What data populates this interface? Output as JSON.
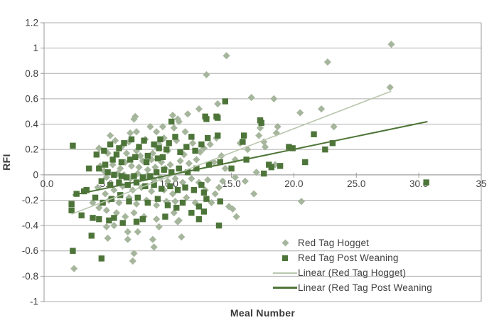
{
  "chart_data": {
    "type": "scatter",
    "title": "",
    "xlabel": "Meal Number",
    "ylabel": "RFI",
    "xlim": [
      0,
      35
    ],
    "ylim": [
      -1,
      1.2
    ],
    "grid": "horizontal",
    "legend_position": "inside-bottom-right",
    "x_ticks": {
      "values": [
        0,
        5,
        10,
        15,
        20,
        25,
        30,
        35
      ],
      "labels": [
        "0.0",
        "5.0",
        "10.0",
        "15.0",
        "20.0",
        "25.0",
        "30.0",
        "35"
      ]
    },
    "y_ticks": {
      "values": [
        1.2,
        1,
        0.8,
        0.6,
        0.4,
        0.2,
        0,
        -0.2,
        -0.4,
        -0.6,
        -0.8,
        -1
      ],
      "labels": [
        "1.2",
        "1",
        "0.8",
        "0.6",
        "0.4",
        "0.2",
        "0",
        "-0.2",
        "-0.4",
        "-0.6",
        "-0.8",
        "-1"
      ]
    },
    "colors": {
      "gridline": "#aeaeae",
      "axis": "#9a9a9a",
      "tick_text": "#3f3f3f",
      "hogget": "#a6b69d",
      "post_weaning": "#4d7539",
      "hogget_line": "#b9c7ae",
      "post_weaning_line": "#4e7538"
    },
    "series": [
      {
        "name": "Red Tag Hogget",
        "marker": "diamond",
        "color": "#a6b69d",
        "points": [
          [
            27.8,
            1.03
          ],
          [
            22.7,
            0.89
          ],
          [
            14.6,
            0.94
          ],
          [
            13.0,
            0.79
          ],
          [
            27.7,
            0.69
          ],
          [
            16.6,
            0.61
          ],
          [
            18.4,
            0.6
          ],
          [
            22.2,
            0.52
          ],
          [
            20.5,
            0.49
          ],
          [
            23.2,
            0.38
          ],
          [
            13.9,
            0.56
          ],
          [
            12.4,
            0.52
          ],
          [
            11.5,
            0.48
          ],
          [
            10.3,
            0.47
          ],
          [
            7.3,
            0.46
          ],
          [
            7.2,
            0.44
          ],
          [
            10.7,
            0.44
          ],
          [
            10.8,
            0.42
          ],
          [
            10.4,
            0.37
          ],
          [
            8.5,
            0.38
          ],
          [
            9.5,
            0.38
          ],
          [
            9.0,
            0.34
          ],
          [
            11.3,
            0.34
          ],
          [
            6.9,
            0.33
          ],
          [
            7.4,
            0.34
          ],
          [
            5.3,
            0.31
          ],
          [
            9.6,
            0.29
          ],
          [
            13.8,
            0.29
          ],
          [
            17.2,
            0.31
          ],
          [
            17.3,
            0.37
          ],
          [
            18.7,
            0.38
          ],
          [
            18.6,
            0.33
          ],
          [
            15.7,
            0.25
          ],
          [
            17.6,
            0.26
          ],
          [
            17.7,
            0.22
          ],
          [
            16.3,
            0.2
          ],
          [
            8.9,
            0.23
          ],
          [
            13.3,
            0.24
          ],
          [
            12.8,
            0.21
          ],
          [
            11.9,
            0.25
          ],
          [
            10.6,
            0.27
          ],
          [
            9.2,
            0.24
          ],
          [
            8.1,
            0.28
          ],
          [
            6.8,
            0.26
          ],
          [
            5.7,
            0.27
          ],
          [
            6.2,
            0.22
          ],
          [
            4.4,
            0.21
          ],
          [
            5.1,
            0.17
          ],
          [
            7.4,
            0.19
          ],
          [
            8.7,
            0.17
          ],
          [
            9.9,
            0.19
          ],
          [
            11.2,
            0.16
          ],
          [
            12.5,
            0.18
          ],
          [
            6.6,
            0.17
          ],
          [
            7.7,
            0.15
          ],
          [
            7.9,
            0.11
          ],
          [
            8.6,
            0.12
          ],
          [
            9.4,
            0.1
          ],
          [
            6.5,
            0.1
          ],
          [
            15.3,
            0.12
          ],
          [
            14.2,
            0.15
          ],
          [
            13.6,
            0.1
          ],
          [
            12.2,
            0.12
          ],
          [
            11.6,
            0.09
          ],
          [
            10.9,
            0.11
          ],
          [
            10.1,
            0.08
          ],
          [
            9.7,
            0.05
          ],
          [
            8.9,
            0.06
          ],
          [
            8.3,
            0.04
          ],
          [
            7.6,
            0.06
          ],
          [
            7.0,
            0.07
          ],
          [
            6.1,
            0.05
          ],
          [
            5.5,
            0.08
          ],
          [
            4.8,
            0.03
          ],
          [
            4.5,
            0.07
          ],
          [
            5.0,
            -0.02
          ],
          [
            5.9,
            0.01
          ],
          [
            6.4,
            0.0
          ],
          [
            6.9,
            -0.03
          ],
          [
            7.5,
            0.01
          ],
          [
            8.2,
            -0.01
          ],
          [
            8.8,
            -0.04
          ],
          [
            9.3,
            -0.02
          ],
          [
            9.9,
            -0.05
          ],
          [
            10.5,
            -0.03
          ],
          [
            11.1,
            -0.06
          ],
          [
            11.8,
            -0.03
          ],
          [
            12.4,
            -0.06
          ],
          [
            13.1,
            -0.04
          ],
          [
            14.0,
            -0.1
          ],
          [
            15.3,
            -0.02
          ],
          [
            18.5,
            0.08
          ],
          [
            10.3,
            -0.15
          ],
          [
            9.6,
            -0.12
          ],
          [
            8.6,
            -0.13
          ],
          [
            7.8,
            -0.1
          ],
          [
            7.1,
            -0.12
          ],
          [
            6.3,
            -0.09
          ],
          [
            5.6,
            -0.12
          ],
          [
            4.9,
            -0.15
          ],
          [
            4.3,
            -0.1
          ],
          [
            5.2,
            -0.2
          ],
          [
            6.0,
            -0.22
          ],
          [
            6.8,
            -0.18
          ],
          [
            7.4,
            -0.23
          ],
          [
            8.2,
            -0.2
          ],
          [
            9.0,
            -0.24
          ],
          [
            9.8,
            -0.21
          ],
          [
            10.5,
            -0.21
          ],
          [
            11.4,
            -0.18
          ],
          [
            12.1,
            -0.22
          ],
          [
            13.4,
            -0.22
          ],
          [
            14.8,
            -0.25
          ],
          [
            15.1,
            -0.27
          ],
          [
            16.8,
            -0.15
          ],
          [
            15.4,
            -0.33
          ],
          [
            10.4,
            -0.3
          ],
          [
            10.8,
            -0.36
          ],
          [
            9.2,
            -0.41
          ],
          [
            9.0,
            -0.35
          ],
          [
            10.7,
            -0.37
          ],
          [
            8.0,
            -0.33
          ],
          [
            7.2,
            -0.3
          ],
          [
            6.5,
            -0.33
          ],
          [
            5.8,
            -0.3
          ],
          [
            5.0,
            -0.28
          ],
          [
            4.4,
            -0.26
          ],
          [
            3.9,
            -0.22
          ],
          [
            5.0,
            -0.41
          ],
          [
            5.6,
            -0.4
          ],
          [
            6.7,
            -0.45
          ],
          [
            7.5,
            -0.45
          ],
          [
            8.7,
            -0.51
          ],
          [
            8.8,
            -0.57
          ],
          [
            7.2,
            -0.62
          ],
          [
            7.1,
            -0.68
          ],
          [
            2.4,
            -0.74
          ],
          [
            5.1,
            -0.5
          ],
          [
            6.7,
            -0.51
          ],
          [
            11.0,
            -0.49
          ],
          [
            20.6,
            -0.21
          ],
          [
            16.1,
            -0.05
          ],
          [
            17.0,
            0.02
          ],
          [
            14.5,
            0.05
          ],
          [
            13.7,
            -0.15
          ],
          [
            12.9,
            -0.12
          ],
          [
            14.3,
            -0.05
          ]
        ]
      },
      {
        "name": "Red Tag Post Weaning",
        "marker": "square",
        "color": "#4d7539",
        "points": [
          [
            2.3,
            0.23
          ],
          [
            14.5,
            0.58
          ],
          [
            12.9,
            0.46
          ],
          [
            13.8,
            0.46
          ],
          [
            13.9,
            0.45
          ],
          [
            13.0,
            0.44
          ],
          [
            10.2,
            0.42
          ],
          [
            17.3,
            0.43
          ],
          [
            16.0,
            0.31
          ],
          [
            15.9,
            0.26
          ],
          [
            21.6,
            0.32
          ],
          [
            23.1,
            0.25
          ],
          [
            19.6,
            0.22
          ],
          [
            22.5,
            0.2
          ],
          [
            19.9,
            0.21
          ],
          [
            20.9,
            0.1
          ],
          [
            18.2,
            0.06
          ],
          [
            18.9,
            0.07
          ],
          [
            17.6,
            0.01
          ],
          [
            18.0,
            0.08
          ],
          [
            30.6,
            -0.06
          ],
          [
            10.5,
            0.3
          ],
          [
            11.8,
            0.3
          ],
          [
            13.1,
            0.29
          ],
          [
            13.9,
            0.31
          ],
          [
            12.6,
            0.24
          ],
          [
            12.1,
            0.19
          ],
          [
            11.4,
            0.22
          ],
          [
            10.9,
            0.18
          ],
          [
            10.0,
            0.25
          ],
          [
            9.3,
            0.28
          ],
          [
            8.8,
            0.24
          ],
          [
            8.0,
            0.27
          ],
          [
            7.6,
            0.22
          ],
          [
            7.0,
            0.28
          ],
          [
            6.4,
            0.25
          ],
          [
            5.8,
            0.16
          ],
          [
            5.3,
            0.24
          ],
          [
            4.8,
            0.19
          ],
          [
            4.2,
            0.16
          ],
          [
            6.0,
            0.21
          ],
          [
            9.2,
            0.21
          ],
          [
            9.8,
            0.2
          ],
          [
            9.1,
            0.13
          ],
          [
            9.5,
            0.14
          ],
          [
            8.3,
            0.15
          ],
          [
            8.2,
            0.1
          ],
          [
            7.3,
            0.14
          ],
          [
            6.9,
            0.12
          ],
          [
            6.2,
            0.1
          ],
          [
            5.5,
            0.12
          ],
          [
            4.9,
            0.08
          ],
          [
            4.4,
            0.05
          ],
          [
            5.1,
            0.02
          ],
          [
            5.6,
            0.0
          ],
          [
            6.2,
            -0.01
          ],
          [
            6.6,
            -0.02
          ],
          [
            7.2,
            -0.01
          ],
          [
            7.9,
            -0.02
          ],
          [
            8.5,
            -0.01
          ],
          [
            9.0,
            0.02
          ],
          [
            9.6,
            0.04
          ],
          [
            10.2,
            0.02
          ],
          [
            10.8,
            0.05
          ],
          [
            11.5,
            0.02
          ],
          [
            12.2,
            0.05
          ],
          [
            13.2,
            0.08
          ],
          [
            14.1,
            0.1
          ],
          [
            15.0,
            0.05
          ],
          [
            16.2,
            0.12
          ],
          [
            4.6,
            -0.05
          ],
          [
            5.3,
            -0.08
          ],
          [
            6.0,
            -0.06
          ],
          [
            6.7,
            -0.08
          ],
          [
            7.4,
            -0.06
          ],
          [
            8.1,
            -0.09
          ],
          [
            8.8,
            -0.08
          ],
          [
            9.4,
            -0.11
          ],
          [
            10.1,
            -0.09
          ],
          [
            10.7,
            -0.12
          ],
          [
            11.3,
            -0.1
          ],
          [
            12.0,
            -0.12
          ],
          [
            12.6,
            -0.08
          ],
          [
            12.8,
            -0.14
          ],
          [
            13.0,
            -0.19
          ],
          [
            14.1,
            -0.21
          ],
          [
            12.4,
            -0.25
          ],
          [
            12.8,
            -0.29
          ],
          [
            11.8,
            -0.3
          ],
          [
            12.4,
            -0.35
          ],
          [
            14.0,
            -0.4
          ],
          [
            2.2,
            -0.28
          ],
          [
            3.0,
            -0.32
          ],
          [
            3.9,
            -0.34
          ],
          [
            4.4,
            -0.35
          ],
          [
            5.2,
            -0.36
          ],
          [
            5.6,
            -0.34
          ],
          [
            6.3,
            -0.38
          ],
          [
            7.4,
            -0.37
          ],
          [
            7.9,
            -0.35
          ],
          [
            9.7,
            -0.33
          ],
          [
            3.8,
            -0.48
          ],
          [
            2.3,
            -0.6
          ],
          [
            4.6,
            -0.66
          ],
          [
            2.6,
            -0.15
          ],
          [
            2.2,
            -0.23
          ],
          [
            3.2,
            -0.13
          ],
          [
            4.1,
            -0.18
          ],
          [
            4.7,
            -0.22
          ],
          [
            5.4,
            -0.19
          ],
          [
            6.1,
            -0.16
          ],
          [
            6.8,
            -0.21
          ],
          [
            7.5,
            -0.18
          ],
          [
            8.3,
            -0.22
          ],
          [
            9.1,
            -0.19
          ],
          [
            9.9,
            -0.24
          ],
          [
            10.6,
            -0.26
          ],
          [
            11.1,
            -0.22
          ],
          [
            3.4,
            -0.12
          ],
          [
            3.6,
            0.05
          ],
          [
            17.4,
            0.41
          ]
        ]
      }
    ],
    "trendlines": [
      {
        "name": "Linear (Red Tag Hogget)",
        "color": "#b9c7ae",
        "x": [
          2.2,
          27.8
        ],
        "y": [
          -0.31,
          0.66
        ]
      },
      {
        "name": "Linear (Red Tag Post Weaning",
        "color": "#4e7538",
        "x": [
          2.3,
          30.7
        ],
        "y": [
          -0.16,
          0.42
        ]
      }
    ]
  }
}
